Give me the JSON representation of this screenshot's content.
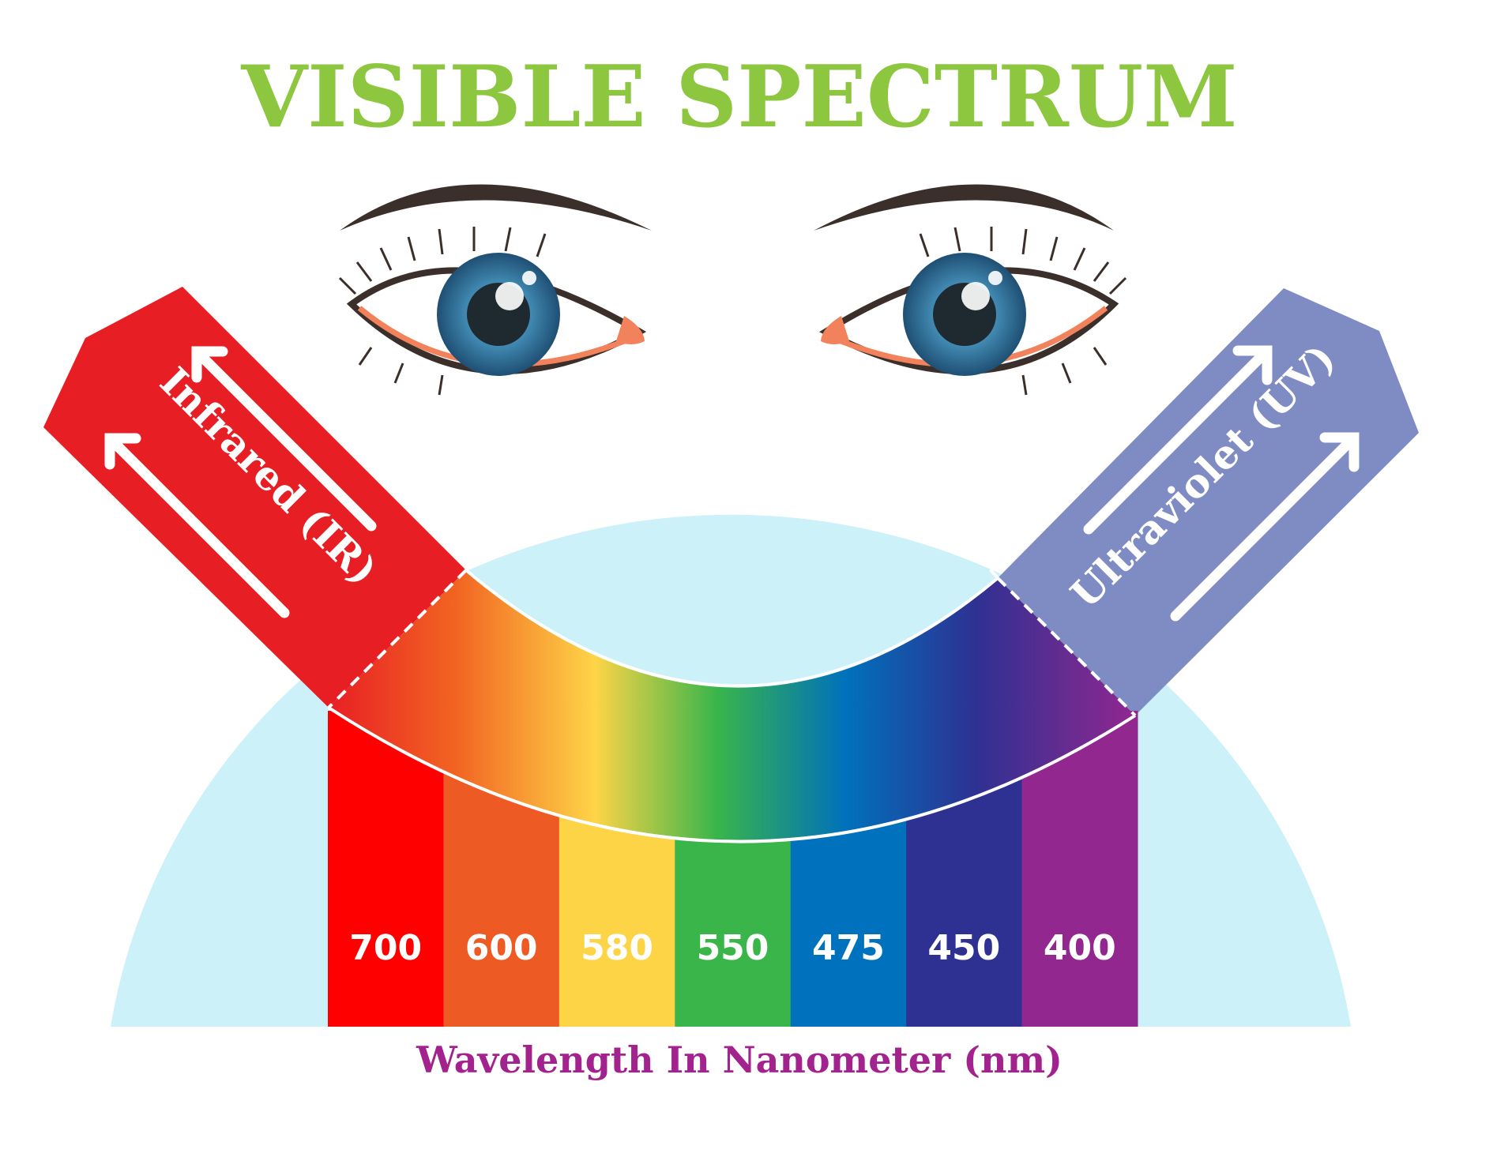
{
  "title": "VISIBLE SPECTRUM",
  "infrared_label": "Infrared (IR)",
  "ultraviolet_label": "Ultraviolet (UV)",
  "axis_label": "Wavelength In Nanometer (nm)",
  "bands": [
    {
      "value": "700",
      "color": "#ff0000"
    },
    {
      "value": "600",
      "color": "#ee5a24"
    },
    {
      "value": "580",
      "color": "#fed447"
    },
    {
      "value": "550",
      "color": "#39b54a"
    },
    {
      "value": "475",
      "color": "#0071bc"
    },
    {
      "value": "450",
      "color": "#2e3192"
    },
    {
      "value": "400",
      "color": "#92278f"
    }
  ],
  "colors": {
    "title": "#8dc63f",
    "axis_label": "#a3238e",
    "dome": "#cdf1f9",
    "infrared": "#e81e25",
    "ultraviolet": "#7f8bc3",
    "iris": "#2e6b8f"
  },
  "icons": [
    "left-eye-icon",
    "right-eye-icon",
    "infrared-arrow-icon",
    "ultraviolet-arrow-icon"
  ]
}
